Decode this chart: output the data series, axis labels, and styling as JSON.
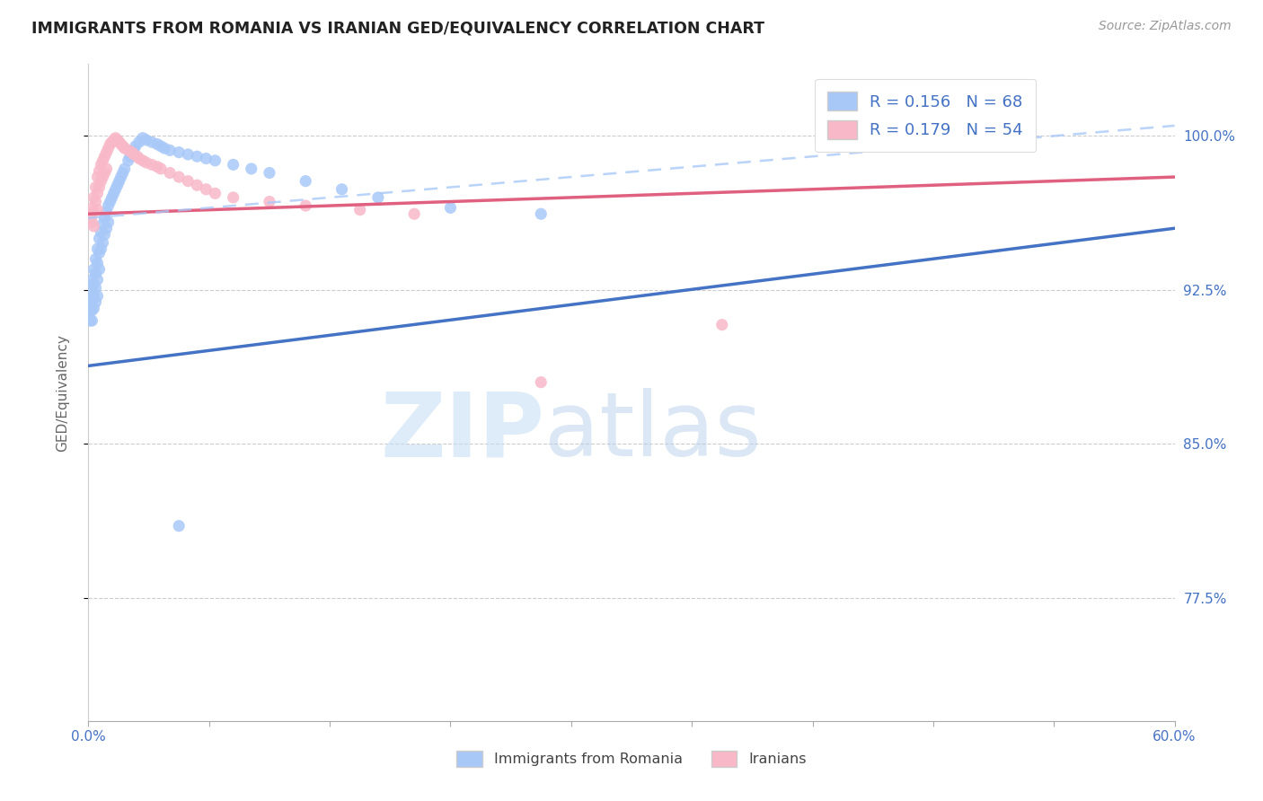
{
  "title": "IMMIGRANTS FROM ROMANIA VS IRANIAN GED/EQUIVALENCY CORRELATION CHART",
  "source": "Source: ZipAtlas.com",
  "ylabel": "GED/Equivalency",
  "yticks": [
    "100.0%",
    "92.5%",
    "85.0%",
    "77.5%"
  ],
  "ytick_vals": [
    1.0,
    0.925,
    0.85,
    0.775
  ],
  "xmin": 0.0,
  "xmax": 0.6,
  "ymin": 0.715,
  "ymax": 1.035,
  "legend_label1": "Immigrants from Romania",
  "legend_label2": "Iranians",
  "color_romania": "#a8c8f8",
  "color_iran": "#f8b8c8",
  "color_romania_line": "#4472c4",
  "color_iran_line": "#e06080",
  "color_dash": "#a8c8f8",
  "romania_line_x0": 0.0,
  "romania_line_x1": 0.6,
  "romania_line_y0": 0.888,
  "romania_line_y1": 0.955,
  "iran_line_x0": 0.0,
  "iran_line_x1": 0.6,
  "iran_line_y0": 0.962,
  "iran_line_y1": 0.98,
  "dash_line_x0": 0.0,
  "dash_line_x1": 0.6,
  "dash_line_y0": 0.96,
  "dash_line_y1": 1.005,
  "romania_pts_x": [
    0.001,
    0.001,
    0.001,
    0.002,
    0.002,
    0.002,
    0.002,
    0.002,
    0.003,
    0.003,
    0.003,
    0.003,
    0.004,
    0.004,
    0.004,
    0.004,
    0.005,
    0.005,
    0.005,
    0.005,
    0.006,
    0.006,
    0.006,
    0.007,
    0.007,
    0.008,
    0.008,
    0.009,
    0.009,
    0.01,
    0.01,
    0.011,
    0.011,
    0.012,
    0.013,
    0.014,
    0.015,
    0.016,
    0.017,
    0.018,
    0.019,
    0.02,
    0.022,
    0.023,
    0.025,
    0.026,
    0.028,
    0.03,
    0.032,
    0.035,
    0.038,
    0.04,
    0.042,
    0.045,
    0.05,
    0.055,
    0.06,
    0.065,
    0.07,
    0.08,
    0.09,
    0.1,
    0.12,
    0.14,
    0.16,
    0.2,
    0.25,
    0.05
  ],
  "romania_pts_y": [
    0.92,
    0.915,
    0.91,
    0.93,
    0.925,
    0.92,
    0.915,
    0.91,
    0.935,
    0.928,
    0.922,
    0.916,
    0.94,
    0.933,
    0.926,
    0.919,
    0.945,
    0.938,
    0.93,
    0.922,
    0.95,
    0.943,
    0.935,
    0.953,
    0.945,
    0.957,
    0.948,
    0.96,
    0.952,
    0.963,
    0.955,
    0.966,
    0.958,
    0.968,
    0.97,
    0.972,
    0.974,
    0.976,
    0.978,
    0.98,
    0.982,
    0.984,
    0.988,
    0.99,
    0.993,
    0.995,
    0.997,
    0.999,
    0.998,
    0.997,
    0.996,
    0.995,
    0.994,
    0.993,
    0.992,
    0.991,
    0.99,
    0.989,
    0.988,
    0.986,
    0.984,
    0.982,
    0.978,
    0.974,
    0.97,
    0.965,
    0.962,
    0.81
  ],
  "iran_pts_x": [
    0.001,
    0.002,
    0.002,
    0.003,
    0.003,
    0.003,
    0.004,
    0.004,
    0.005,
    0.005,
    0.005,
    0.006,
    0.006,
    0.007,
    0.007,
    0.008,
    0.008,
    0.009,
    0.009,
    0.01,
    0.01,
    0.011,
    0.012,
    0.013,
    0.014,
    0.015,
    0.016,
    0.017,
    0.018,
    0.019,
    0.02,
    0.022,
    0.024,
    0.025,
    0.027,
    0.028,
    0.03,
    0.032,
    0.035,
    0.038,
    0.04,
    0.045,
    0.05,
    0.055,
    0.06,
    0.065,
    0.07,
    0.08,
    0.1,
    0.12,
    0.15,
    0.18,
    0.25,
    0.35
  ],
  "iran_pts_y": [
    0.96,
    0.965,
    0.958,
    0.97,
    0.963,
    0.956,
    0.975,
    0.968,
    0.98,
    0.972,
    0.964,
    0.983,
    0.975,
    0.986,
    0.978,
    0.988,
    0.98,
    0.99,
    0.982,
    0.992,
    0.984,
    0.994,
    0.996,
    0.997,
    0.998,
    0.999,
    0.998,
    0.997,
    0.996,
    0.995,
    0.994,
    0.993,
    0.992,
    0.991,
    0.99,
    0.989,
    0.988,
    0.987,
    0.986,
    0.985,
    0.984,
    0.982,
    0.98,
    0.978,
    0.976,
    0.974,
    0.972,
    0.97,
    0.968,
    0.966,
    0.964,
    0.962,
    0.88,
    0.908
  ]
}
